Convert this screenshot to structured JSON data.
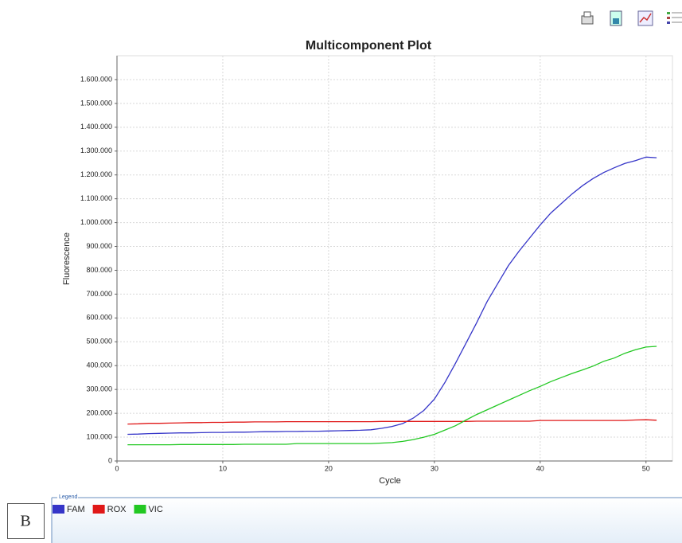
{
  "chart_data": {
    "type": "line",
    "title": "Multicomponent Plot",
    "xlabel": "Cycle",
    "ylabel": "Fluorescence",
    "legend_title": "Legend",
    "panel_label": "B",
    "grid": true,
    "x": [
      1,
      2,
      3,
      4,
      5,
      6,
      7,
      8,
      9,
      10,
      11,
      12,
      13,
      14,
      15,
      16,
      17,
      18,
      19,
      20,
      21,
      22,
      23,
      24,
      25,
      26,
      27,
      28,
      29,
      30,
      31,
      32,
      33,
      34,
      35,
      36,
      37,
      38,
      39,
      40,
      41,
      42,
      43,
      44,
      45,
      46,
      47,
      48,
      49,
      50,
      51
    ],
    "xlim": [
      0,
      52.5
    ],
    "xticks": [
      0,
      10,
      20,
      30,
      40,
      50
    ],
    "ylim": [
      0,
      1700000
    ],
    "yticks": [
      0,
      {
        "value": 100000,
        "label": "100.000"
      },
      {
        "value": 200000,
        "label": "200.000"
      },
      {
        "value": 300000,
        "label": "300.000"
      },
      {
        "value": 400000,
        "label": "400.000"
      },
      {
        "value": 500000,
        "label": "500.000"
      },
      {
        "value": 600000,
        "label": "600.000"
      },
      {
        "value": 700000,
        "label": "700.000"
      },
      {
        "value": 800000,
        "label": "800.000"
      },
      {
        "value": 900000,
        "label": "900.000"
      },
      {
        "value": 1000000,
        "label": "1.000.000"
      },
      {
        "value": 1100000,
        "label": "1.100.000"
      },
      {
        "value": 1200000,
        "label": "1.200.000"
      },
      {
        "value": 1300000,
        "label": "1.300.000"
      },
      {
        "value": 1400000,
        "label": "1.400.000"
      },
      {
        "value": 1500000,
        "label": "1.500.000"
      },
      {
        "value": 1600000,
        "label": "1.600.000"
      }
    ],
    "series": [
      {
        "name": "FAM",
        "color": "#3535c8",
        "values": [
          112000,
          113000,
          115000,
          116000,
          117000,
          118000,
          118000,
          119000,
          120000,
          120000,
          121000,
          121000,
          122000,
          123000,
          123000,
          124000,
          124000,
          125000,
          125000,
          126000,
          127000,
          128000,
          129000,
          131000,
          137000,
          145000,
          157000,
          180000,
          212000,
          260000,
          330000,
          410000,
          495000,
          580000,
          670000,
          745000,
          820000,
          880000,
          935000,
          990000,
          1040000,
          1080000,
          1120000,
          1155000,
          1185000,
          1210000,
          1230000,
          1248000,
          1260000,
          1275000,
          1272000
        ]
      },
      {
        "name": "ROX",
        "color": "#e01818",
        "values": [
          155000,
          156000,
          158000,
          158000,
          159000,
          160000,
          161000,
          161000,
          162000,
          162000,
          163000,
          163000,
          164000,
          164000,
          164000,
          165000,
          165000,
          165000,
          165000,
          165000,
          165000,
          165000,
          165000,
          165000,
          166000,
          166000,
          166000,
          166000,
          166000,
          166000,
          166000,
          166000,
          166000,
          167000,
          167000,
          167000,
          167000,
          167000,
          167000,
          170000,
          170000,
          170000,
          170000,
          170000,
          170000,
          170000,
          170000,
          170000,
          172000,
          173000,
          171000
        ]
      },
      {
        "name": "VIC",
        "color": "#22c822",
        "values": [
          68000,
          68000,
          68000,
          68000,
          68000,
          69000,
          69000,
          69000,
          69000,
          69000,
          69000,
          70000,
          70000,
          70000,
          70000,
          70000,
          73000,
          73000,
          73000,
          73000,
          73000,
          73000,
          73000,
          73000,
          75000,
          77000,
          82000,
          90000,
          100000,
          112000,
          130000,
          148000,
          172000,
          195000,
          215000,
          235000,
          255000,
          275000,
          295000,
          313000,
          333000,
          350000,
          367000,
          382000,
          398000,
          418000,
          432000,
          452000,
          467000,
          478000,
          481000
        ]
      }
    ]
  }
}
